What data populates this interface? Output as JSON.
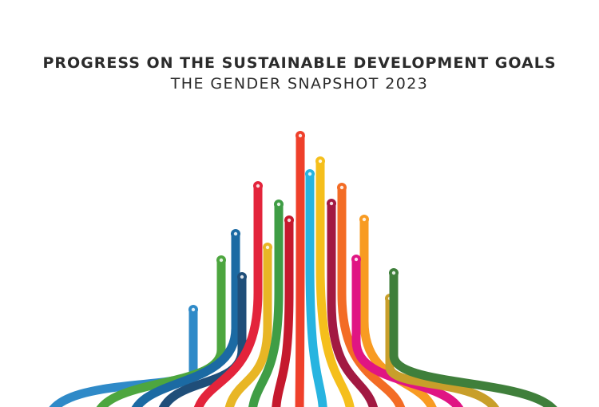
{
  "title": "PROGRESS ON THE SUSTAINABLE DEVELOPMENT GOALS",
  "subtitle": "THE GENDER SNAPSHOT 2023",
  "ribbon_colors": [
    "#2f8ac8",
    "#4da63f",
    "#1b6aa3",
    "#1f4e79",
    "#e3243b",
    "#e8b625",
    "#3f9d45",
    "#c5192d",
    "#ef402b",
    "#27b4e0",
    "#f5bf1c",
    "#a21942",
    "#f36c25",
    "#f89b22",
    "#e01583",
    "#c89f2a",
    "#3f7f3b"
  ]
}
